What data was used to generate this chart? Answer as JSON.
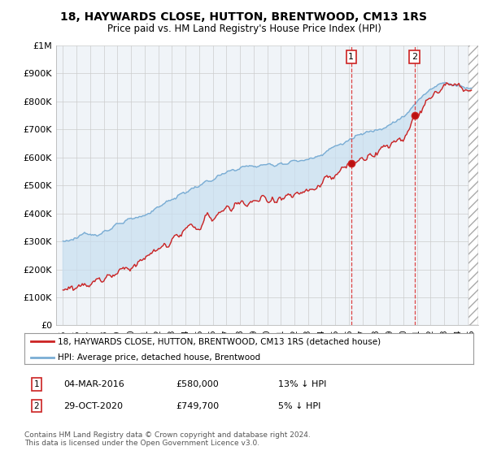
{
  "title": "18, HAYWARDS CLOSE, HUTTON, BRENTWOOD, CM13 1RS",
  "subtitle": "Price paid vs. HM Land Registry's House Price Index (HPI)",
  "ylabel_ticks": [
    "£0",
    "£100K",
    "£200K",
    "£300K",
    "£400K",
    "£500K",
    "£600K",
    "£700K",
    "£800K",
    "£900K",
    "£1M"
  ],
  "ytick_values": [
    0,
    100000,
    200000,
    300000,
    400000,
    500000,
    600000,
    700000,
    800000,
    900000,
    1000000
  ],
  "ylim": [
    0,
    1000000
  ],
  "xlim_start": 1994.5,
  "xlim_end": 2025.5,
  "hpi_color": "#7aadd4",
  "price_color": "#cc2222",
  "fill_color": "#c8dff0",
  "transaction1_x": 2016.17,
  "transaction1_y": 580000,
  "transaction2_x": 2020.83,
  "transaction2_y": 749700,
  "transaction1_label": "04-MAR-2016",
  "transaction1_price": "£580,000",
  "transaction1_hpi": "13% ↓ HPI",
  "transaction2_label": "29-OCT-2020",
  "transaction2_price": "£749,700",
  "transaction2_hpi": "5% ↓ HPI",
  "legend_label1": "18, HAYWARDS CLOSE, HUTTON, BRENTWOOD, CM13 1RS (detached house)",
  "legend_label2": "HPI: Average price, detached house, Brentwood",
  "footnote": "Contains HM Land Registry data © Crown copyright and database right 2024.\nThis data is licensed under the Open Government Licence v3.0.",
  "background_color": "#ffffff",
  "plot_bg_color": "#f0f4f8"
}
